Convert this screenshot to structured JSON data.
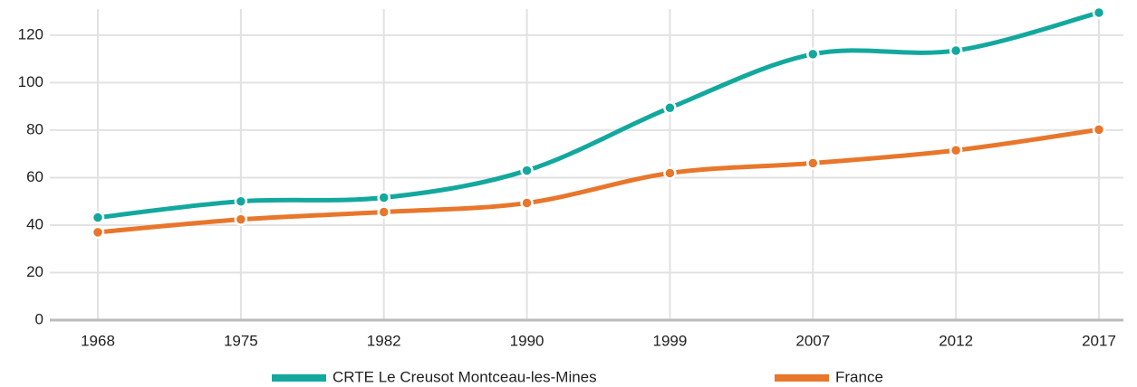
{
  "chart_data": {
    "type": "line",
    "categories": [
      "1968",
      "1975",
      "1982",
      "1990",
      "1999",
      "2007",
      "2012",
      "2017"
    ],
    "series": [
      {
        "name": "CRTE Le Creusot Montceau-les-Mines",
        "color": "#13a89e",
        "values": [
          43.2,
          50,
          51.6,
          63,
          89.4,
          112,
          113.5,
          129.5
        ]
      },
      {
        "name": "France",
        "color": "#e8762b",
        "values": [
          37,
          42.4,
          45.5,
          49.3,
          61.9,
          66.1,
          71.5,
          80.2
        ]
      }
    ],
    "ylim": [
      0,
      131
    ],
    "yticks": [
      0,
      20,
      40,
      60,
      80,
      100,
      120
    ],
    "grid": true,
    "legend": "bottom"
  }
}
